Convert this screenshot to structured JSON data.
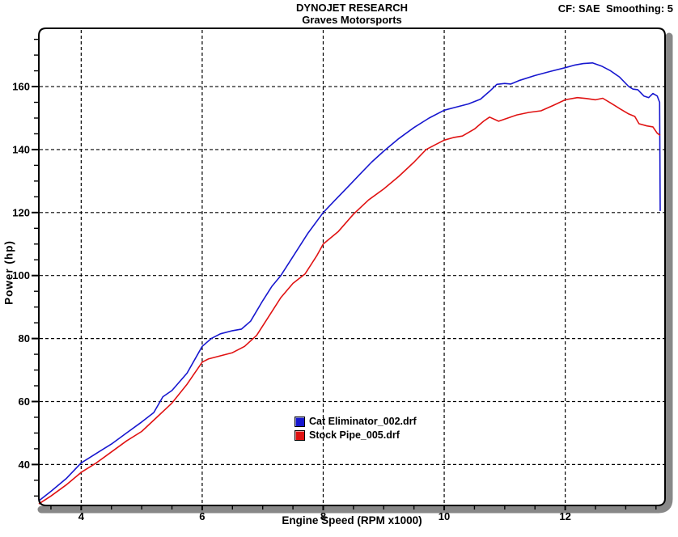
{
  "chart_data": {
    "type": "line",
    "title": "DYNOJET RESEARCH",
    "subtitle": "Graves Motorsports",
    "correction_label": "CF: SAE  Smoothing: 5",
    "xlabel": "Engine Speed (RPM x1000)",
    "ylabel": "Power (hp)",
    "xlim": [
      3.3,
      13.65
    ],
    "ylim": [
      27,
      178.5
    ],
    "x_major_ticks": [
      4,
      6,
      8,
      10,
      12
    ],
    "x_minor_step": 0.5,
    "y_major_ticks": [
      40,
      60,
      80,
      100,
      120,
      140,
      160
    ],
    "y_minor_step": 5,
    "grid": "dashed-lines-on-major-ticks",
    "legend_position": "inside-bottom-center",
    "series": [
      {
        "name": "Cat Eliminator_002.drf",
        "color": "#1717cf",
        "peak_hp": 167.5,
        "points": [
          [
            3.3,
            28.5
          ],
          [
            3.5,
            31.5
          ],
          [
            3.75,
            35.5
          ],
          [
            4.0,
            40.5
          ],
          [
            4.25,
            43.5
          ],
          [
            4.5,
            46.5
          ],
          [
            4.75,
            50.0
          ],
          [
            5.0,
            53.5
          ],
          [
            5.2,
            56.5
          ],
          [
            5.35,
            61.5
          ],
          [
            5.5,
            63.5
          ],
          [
            5.75,
            69.0
          ],
          [
            6.0,
            77.5
          ],
          [
            6.15,
            80.0
          ],
          [
            6.3,
            81.5
          ],
          [
            6.5,
            82.5
          ],
          [
            6.65,
            83.0
          ],
          [
            6.8,
            85.5
          ],
          [
            7.0,
            92.0
          ],
          [
            7.15,
            96.5
          ],
          [
            7.3,
            100.0
          ],
          [
            7.5,
            106.0
          ],
          [
            7.75,
            113.5
          ],
          [
            8.0,
            120.0
          ],
          [
            8.2,
            124.0
          ],
          [
            8.4,
            128.0
          ],
          [
            8.6,
            132.0
          ],
          [
            8.8,
            136.0
          ],
          [
            9.0,
            139.5
          ],
          [
            9.25,
            143.5
          ],
          [
            9.5,
            147.0
          ],
          [
            9.75,
            150.0
          ],
          [
            10.0,
            152.5
          ],
          [
            10.2,
            153.5
          ],
          [
            10.4,
            154.5
          ],
          [
            10.6,
            156.0
          ],
          [
            10.75,
            158.5
          ],
          [
            10.87,
            160.7
          ],
          [
            11.0,
            161.0
          ],
          [
            11.1,
            160.8
          ],
          [
            11.25,
            162.0
          ],
          [
            11.5,
            163.5
          ],
          [
            11.75,
            164.8
          ],
          [
            12.0,
            166.0
          ],
          [
            12.15,
            166.8
          ],
          [
            12.3,
            167.3
          ],
          [
            12.45,
            167.5
          ],
          [
            12.6,
            166.5
          ],
          [
            12.75,
            165.0
          ],
          [
            12.9,
            163.0
          ],
          [
            13.05,
            160.0
          ],
          [
            13.12,
            159.2
          ],
          [
            13.2,
            159.0
          ],
          [
            13.3,
            157.0
          ],
          [
            13.38,
            156.5
          ],
          [
            13.45,
            157.8
          ],
          [
            13.52,
            157.0
          ],
          [
            13.56,
            155.0
          ],
          [
            13.57,
            120.5
          ]
        ]
      },
      {
        "name": "Stock Pipe_005.drf",
        "color": "#e01212",
        "peak_hp": 156.5,
        "points": [
          [
            3.3,
            27.5
          ],
          [
            3.5,
            30.0
          ],
          [
            3.75,
            33.5
          ],
          [
            4.0,
            37.5
          ],
          [
            4.25,
            40.5
          ],
          [
            4.5,
            44.0
          ],
          [
            4.75,
            47.5
          ],
          [
            5.0,
            50.5
          ],
          [
            5.25,
            55.0
          ],
          [
            5.5,
            59.5
          ],
          [
            5.75,
            65.5
          ],
          [
            6.0,
            72.5
          ],
          [
            6.1,
            73.5
          ],
          [
            6.3,
            74.5
          ],
          [
            6.5,
            75.5
          ],
          [
            6.7,
            77.5
          ],
          [
            6.9,
            81.0
          ],
          [
            7.1,
            87.0
          ],
          [
            7.3,
            93.0
          ],
          [
            7.5,
            97.5
          ],
          [
            7.7,
            100.5
          ],
          [
            7.9,
            106.5
          ],
          [
            8.0,
            110.0
          ],
          [
            8.25,
            114.0
          ],
          [
            8.5,
            119.5
          ],
          [
            8.75,
            124.0
          ],
          [
            9.0,
            127.5
          ],
          [
            9.25,
            131.5
          ],
          [
            9.5,
            136.0
          ],
          [
            9.7,
            140.0
          ],
          [
            9.85,
            141.5
          ],
          [
            10.0,
            143.0
          ],
          [
            10.15,
            143.8
          ],
          [
            10.3,
            144.3
          ],
          [
            10.5,
            146.5
          ],
          [
            10.65,
            149.0
          ],
          [
            10.75,
            150.3
          ],
          [
            10.9,
            149.0
          ],
          [
            11.05,
            150.0
          ],
          [
            11.2,
            151.0
          ],
          [
            11.4,
            151.8
          ],
          [
            11.6,
            152.3
          ],
          [
            11.8,
            154.0
          ],
          [
            12.0,
            155.8
          ],
          [
            12.2,
            156.5
          ],
          [
            12.35,
            156.2
          ],
          [
            12.5,
            155.8
          ],
          [
            12.62,
            156.3
          ],
          [
            12.75,
            154.8
          ],
          [
            12.9,
            153.0
          ],
          [
            13.05,
            151.3
          ],
          [
            13.15,
            150.5
          ],
          [
            13.22,
            148.2
          ],
          [
            13.35,
            147.5
          ],
          [
            13.45,
            147.2
          ],
          [
            13.52,
            145.2
          ],
          [
            13.57,
            144.5
          ]
        ]
      }
    ]
  },
  "colors": {
    "frame": "#000000",
    "shadow": "#888888",
    "grid": "#000000",
    "background": "#ffffff"
  }
}
